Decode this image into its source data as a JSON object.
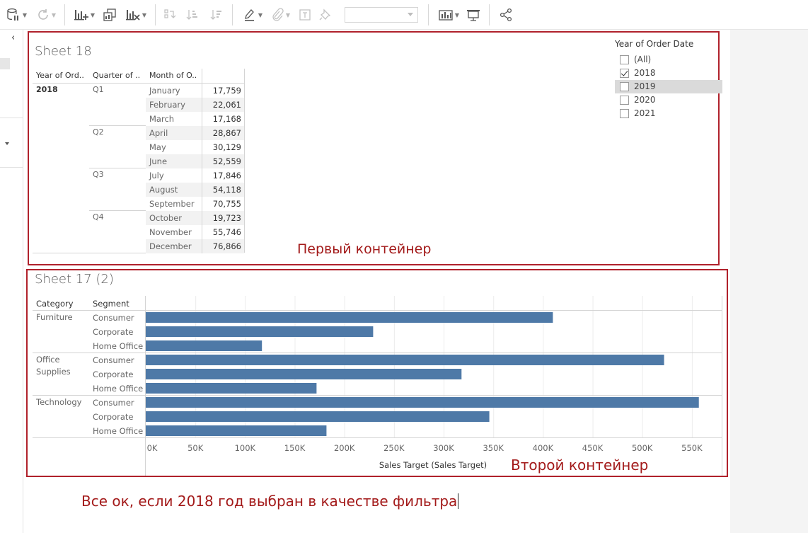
{
  "toolbar": {
    "icons": [
      "datasource-icon",
      "refresh-icon",
      "new-worksheet-icon",
      "duplicate-sheet-icon",
      "clear-sheet-icon",
      "swap-icon",
      "sort-ascending-icon",
      "sort-descending-icon",
      "highlight-icon",
      "group-icon",
      "label-icon",
      "pin-icon",
      "show-me-icon",
      "presentation-icon",
      "share-icon"
    ]
  },
  "sheet18": {
    "title": "Sheet 18",
    "headers": [
      "Year of Ord..",
      "Quarter of ..",
      "Month of O.."
    ],
    "year": "2018",
    "quarters": [
      "Q1",
      "Q2",
      "Q3",
      "Q4"
    ],
    "months": [
      "January",
      "February",
      "March",
      "April",
      "May",
      "June",
      "July",
      "August",
      "September",
      "October",
      "November",
      "December"
    ],
    "values": [
      "17,759",
      "22,061",
      "17,168",
      "28,867",
      "30,129",
      "52,559",
      "17,846",
      "54,118",
      "70,755",
      "19,723",
      "55,746",
      "76,866"
    ]
  },
  "filter": {
    "title": "Year of Order Date",
    "items": [
      {
        "label": "(All)",
        "checked": false
      },
      {
        "label": "2018",
        "checked": true
      },
      {
        "label": "2019",
        "checked": false
      },
      {
        "label": "2020",
        "checked": false
      },
      {
        "label": "2021",
        "checked": false
      }
    ]
  },
  "annotations": {
    "first": "Первый контейнер",
    "second": "Второй контейнер",
    "note": "Все ок, если 2018 год выбран в качестве фильтра"
  },
  "sheet17": {
    "title": "Sheet 17 (2)",
    "headers": [
      "Category",
      "Segment"
    ],
    "categories": [
      "Furniture",
      "Office\nSupplies",
      "Technology"
    ],
    "category_lines": [
      [
        "Furniture"
      ],
      [
        "Office",
        "Supplies"
      ],
      [
        "Technology"
      ]
    ],
    "segments": [
      "Consumer",
      "Corporate",
      "Home Office"
    ]
  },
  "chart_data": {
    "type": "bar",
    "orientation": "horizontal",
    "xlabel": "Sales Target (Sales Target)",
    "xlim": [
      0,
      580000
    ],
    "ticks": [
      0,
      50000,
      100000,
      150000,
      200000,
      250000,
      300000,
      350000,
      400000,
      450000,
      500000,
      550000
    ],
    "tick_labels": [
      "0K",
      "50K",
      "100K",
      "150K",
      "200K",
      "250K",
      "300K",
      "350K",
      "400K",
      "450K",
      "500K",
      "550K"
    ],
    "bar_color": "#4e79a7",
    "rows": [
      {
        "category": "Furniture",
        "segment": "Consumer",
        "value": 410000
      },
      {
        "category": "Furniture",
        "segment": "Corporate",
        "value": 229000
      },
      {
        "category": "Furniture",
        "segment": "Home Office",
        "value": 117000
      },
      {
        "category": "Office Supplies",
        "segment": "Consumer",
        "value": 522000
      },
      {
        "category": "Office Supplies",
        "segment": "Corporate",
        "value": 318000
      },
      {
        "category": "Office Supplies",
        "segment": "Home Office",
        "value": 172000
      },
      {
        "category": "Technology",
        "segment": "Consumer",
        "value": 557000
      },
      {
        "category": "Technology",
        "segment": "Corporate",
        "value": 346000
      },
      {
        "category": "Technology",
        "segment": "Home Office",
        "value": 182000
      }
    ]
  }
}
